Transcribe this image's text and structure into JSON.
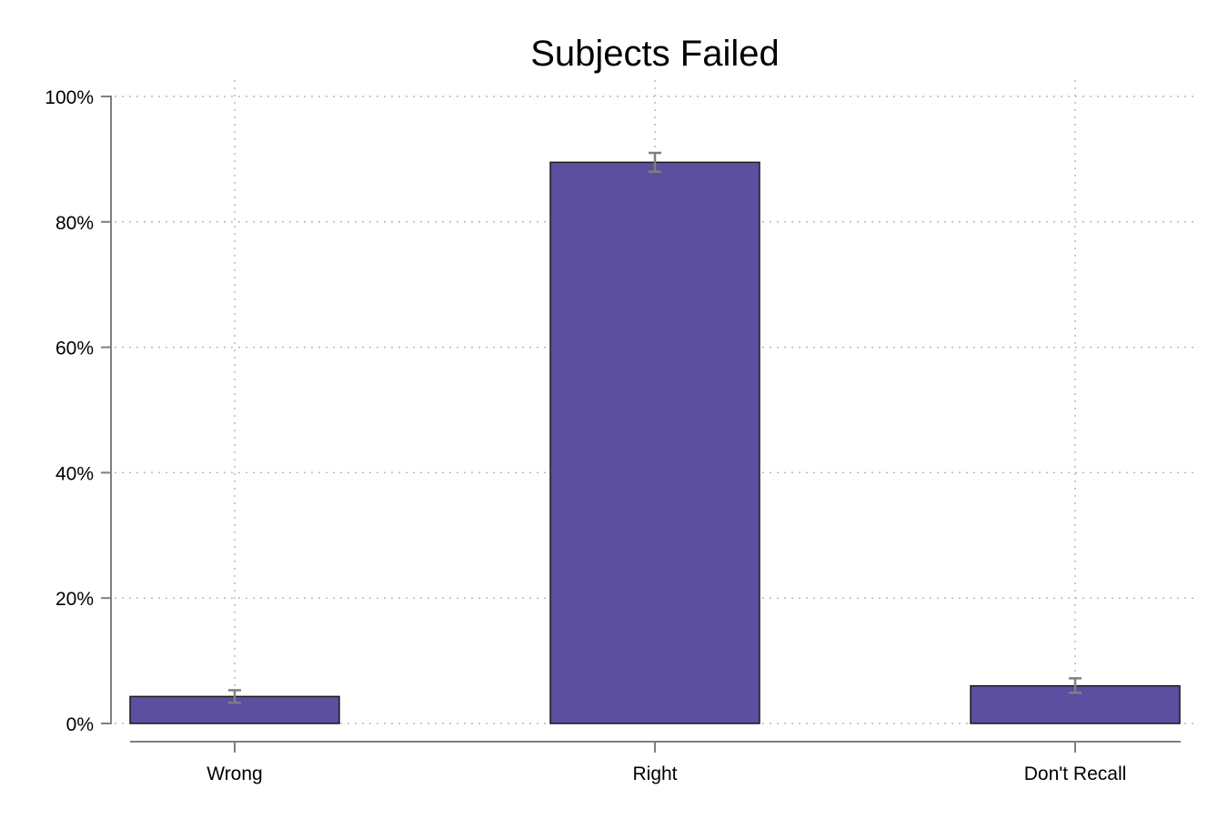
{
  "chart_data": {
    "type": "bar",
    "title": "Subjects Failed",
    "categories": [
      "Wrong",
      "Right",
      "Don't Recall"
    ],
    "values": [
      4.3,
      89.5,
      6.0
    ],
    "error_bars": [
      {
        "low": 3.3,
        "high": 5.3
      },
      {
        "low": 88.0,
        "high": 91.0
      },
      {
        "low": 4.9,
        "high": 7.2
      }
    ],
    "ylim": [
      0,
      100
    ],
    "yticks": [
      0,
      20,
      40,
      60,
      80,
      100
    ],
    "ytick_labels": [
      "0%",
      "20%",
      "40%",
      "60%",
      "80%",
      "100%"
    ],
    "xlabel": "",
    "ylabel": "",
    "grid": true,
    "colors": {
      "bar": "#5c4f9f",
      "error_bar": "#7f7f7f"
    }
  }
}
